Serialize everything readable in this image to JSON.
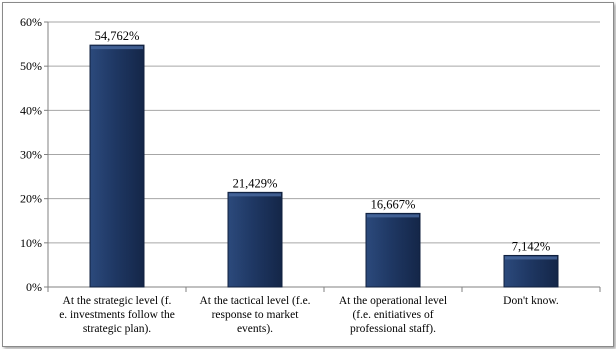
{
  "chart_data": {
    "type": "bar",
    "categories": [
      [
        "At the strategic level (f.",
        "e. investments follow the",
        "strategic plan)."
      ],
      [
        "At the tactical level (f.e.",
        "response to market",
        "events)."
      ],
      [
        "At the operational level",
        "(f.e. enitiatives of",
        "professional staff)."
      ],
      [
        "Don't know."
      ]
    ],
    "values": [
      54.762,
      21.429,
      16.667,
      7.142
    ],
    "data_labels": [
      "54,762%",
      "21,429%",
      "16,667%",
      "7,142%"
    ],
    "yticks": [
      0,
      10,
      20,
      30,
      40,
      50,
      60
    ],
    "ytick_labels": [
      "0%",
      "10%",
      "20%",
      "30%",
      "40%",
      "50%",
      "60%"
    ],
    "ylim": [
      0,
      60
    ],
    "grid": true,
    "legend": "none",
    "title": "",
    "xlabel": "",
    "ylabel": "",
    "colors": {
      "bar": "#1f3864",
      "bar_highlight": "#4a6aa0",
      "grid": "#a6a6a6",
      "axis": "#808080"
    }
  }
}
